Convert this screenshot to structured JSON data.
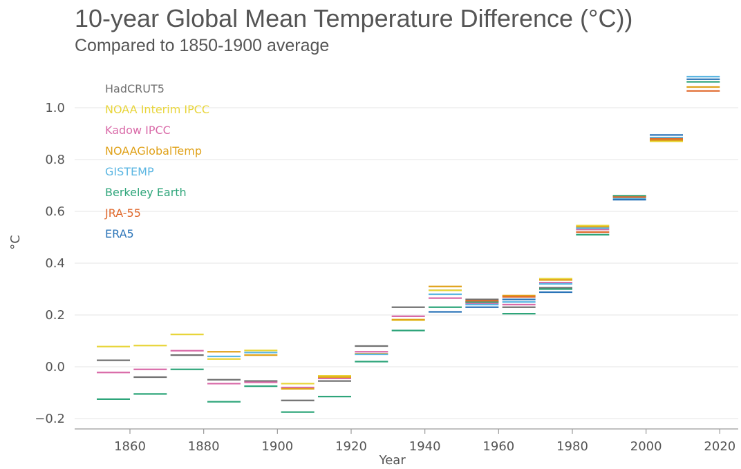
{
  "chart_data": {
    "type": "line",
    "title": "10-year Global Mean Temperature Difference (°C))",
    "subtitle": "Compared to 1850-1900 average",
    "xlabel": "Year",
    "ylabel": "°C",
    "xlim": [
      1845,
      2025
    ],
    "ylim": [
      -0.24,
      1.16
    ],
    "xticks": [
      1860,
      1880,
      1900,
      1920,
      1940,
      1960,
      1980,
      2000,
      2020
    ],
    "xtick_labels": [
      "1860",
      "1880",
      "1900",
      "1920",
      "1940",
      "1960",
      "1980",
      "2000",
      "2020"
    ],
    "yticks": [
      -0.2,
      0.0,
      0.2,
      0.4,
      0.6,
      0.8,
      1.0
    ],
    "ytick_labels": [
      "−0.2",
      "0.0",
      "0.2",
      "0.4",
      "0.6",
      "0.8",
      "1.0"
    ],
    "grid": true,
    "legend_position": "top-left",
    "decades": [
      [
        1851,
        1860
      ],
      [
        1861,
        1870
      ],
      [
        1871,
        1880
      ],
      [
        1881,
        1890
      ],
      [
        1891,
        1900
      ],
      [
        1901,
        1910
      ],
      [
        1911,
        1920
      ],
      [
        1921,
        1930
      ],
      [
        1931,
        1940
      ],
      [
        1941,
        1950
      ],
      [
        1951,
        1960
      ],
      [
        1961,
        1970
      ],
      [
        1971,
        1980
      ],
      [
        1981,
        1990
      ],
      [
        1991,
        2000
      ],
      [
        2001,
        2010
      ],
      [
        2011,
        2020
      ]
    ],
    "series": [
      {
        "name": "HadCRUT5",
        "color": "#707070",
        "values": [
          0.025,
          -0.04,
          0.045,
          -0.05,
          -0.055,
          -0.13,
          -0.055,
          0.08,
          0.23,
          0.295,
          0.26,
          0.23,
          0.305,
          null,
          null,
          null,
          null
        ]
      },
      {
        "name": "NOAA Interim IPCC",
        "color": "#e8d53a",
        "values": [
          0.078,
          0.082,
          0.125,
          0.03,
          0.063,
          -0.065,
          -0.035,
          null,
          0.18,
          0.295,
          null,
          null,
          0.34,
          0.545,
          0.655,
          0.87,
          null
        ]
      },
      {
        "name": "Kadow IPCC",
        "color": "#d96aa8",
        "values": [
          -0.022,
          -0.01,
          0.062,
          -0.065,
          -0.06,
          -0.08,
          -0.045,
          0.058,
          0.195,
          0.265,
          0.245,
          0.24,
          0.325,
          0.53,
          null,
          null,
          null
        ]
      },
      {
        "name": "NOAAGlobalTemp",
        "color": "#e0a21a",
        "values": [
          null,
          null,
          null,
          0.058,
          0.045,
          -0.085,
          -0.04,
          0.05,
          0.182,
          0.31,
          0.25,
          0.275,
          0.335,
          0.54,
          0.66,
          0.875,
          1.08
        ]
      },
      {
        "name": "GISTEMP",
        "color": "#5bb6e2",
        "values": [
          null,
          null,
          null,
          0.04,
          0.055,
          null,
          null,
          0.048,
          null,
          0.28,
          0.24,
          0.25,
          0.32,
          0.535,
          0.65,
          0.885,
          1.12
        ]
      },
      {
        "name": "Berkeley Earth",
        "color": "#2ea57a",
        "values": [
          -0.125,
          -0.105,
          -0.01,
          -0.135,
          -0.075,
          -0.175,
          -0.115,
          0.02,
          0.14,
          0.23,
          0.25,
          0.205,
          0.3,
          0.51,
          0.66,
          0.88,
          1.1
        ]
      },
      {
        "name": "JRA-55",
        "color": "#e06a2e",
        "values": [
          null,
          null,
          null,
          null,
          null,
          null,
          null,
          null,
          null,
          null,
          0.255,
          0.27,
          null,
          0.52,
          0.655,
          0.88,
          1.065
        ]
      },
      {
        "name": "ERA5",
        "color": "#2b74b8",
        "values": [
          null,
          null,
          null,
          null,
          null,
          null,
          null,
          null,
          null,
          0.212,
          0.23,
          0.26,
          0.288,
          null,
          0.645,
          0.895,
          1.11
        ]
      }
    ]
  }
}
